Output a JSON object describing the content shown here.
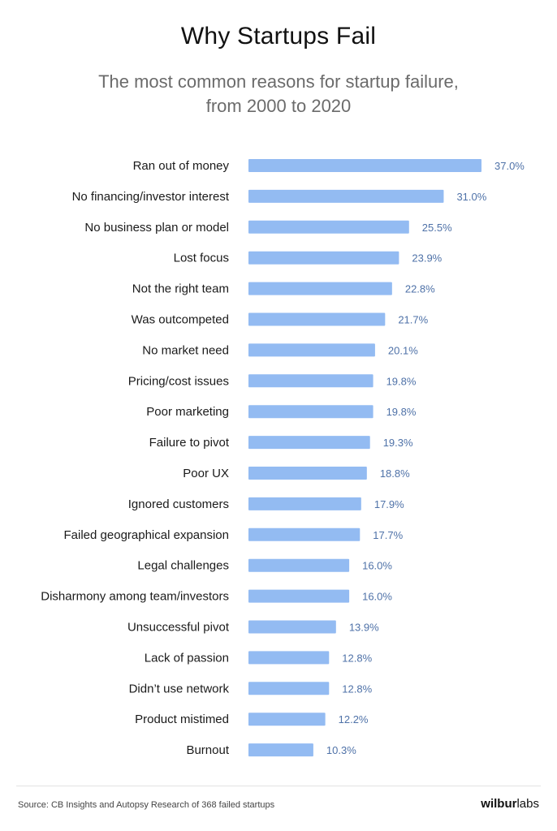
{
  "header": {
    "title": "Why Startups Fail",
    "subtitle": "The most common reasons for startup failure, from 2000 to 2020"
  },
  "footer": {
    "source": "Source: CB Insights and Autopsy Research of 368 failed startups",
    "brand_bold": "wilbur",
    "brand_light": "labs"
  },
  "colors": {
    "bar": "#93bbf2",
    "value_label": "#4f72a8"
  },
  "chart_data": {
    "type": "bar",
    "orientation": "horizontal",
    "title": "Why Startups Fail",
    "subtitle": "The most common reasons for startup failure, from 2000 to 2020",
    "categories": [
      "Ran out of money",
      "No financing/investor interest",
      "No business plan or model",
      "Lost focus",
      "Not the right team",
      "Was outcompeted",
      "No market need",
      "Pricing/cost issues",
      "Poor marketing",
      "Failure to pivot",
      "Poor UX",
      "Ignored customers",
      "Failed geographical expansion",
      "Legal challenges",
      "Disharmony among team/investors",
      "Unsuccessful pivot",
      "Lack of passion",
      "Didn’t use network",
      "Product mistimed",
      "Burnout"
    ],
    "values": [
      37.0,
      31.0,
      25.5,
      23.9,
      22.8,
      21.7,
      20.1,
      19.8,
      19.8,
      19.3,
      18.8,
      17.9,
      17.7,
      16.0,
      16.0,
      13.9,
      12.8,
      12.8,
      12.2,
      10.3
    ],
    "labels": [
      "37.0%",
      "31.0%",
      "25.5%",
      "23.9%",
      "22.8%",
      "21.7%",
      "20.1%",
      "19.8%",
      "19.8%",
      "19.3%",
      "18.8%",
      "17.9%",
      "17.7%",
      "16.0%",
      "16.0%",
      "13.9%",
      "12.8%",
      "12.8%",
      "12.2%",
      "10.3%"
    ],
    "xlim": [
      0,
      37.0
    ],
    "grid": false,
    "legend": "none"
  }
}
